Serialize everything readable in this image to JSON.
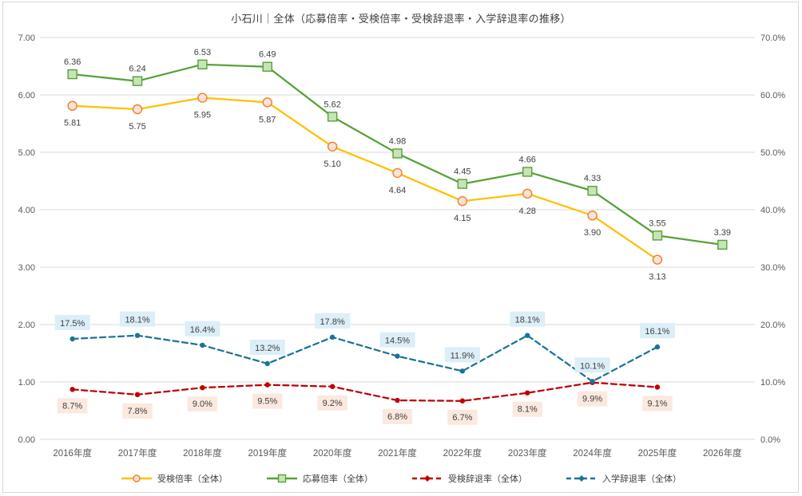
{
  "title": "小石川｜全体（応募倍率・受検倍率・受検辞退率・入学辞退率の推移）",
  "chart_data": {
    "type": "line",
    "title": "小石川｜全体（応募倍率・受検倍率・受検辞退率・入学辞退率の推移）",
    "categories": [
      "2016年度",
      "2017年度",
      "2018年度",
      "2019年度",
      "2020年度",
      "2021年度",
      "2022年度",
      "2023年度",
      "2024年度",
      "2025年度",
      "2026年度"
    ],
    "grid": true,
    "legend_position": "bottom",
    "colors": {
      "grid_line": "#d9d9d9",
      "axis_text": "#595959",
      "label_text": "#404040"
    },
    "left_axis": {
      "min": 0,
      "max": 7,
      "tick_step": 1,
      "tick_labels": [
        "0.00",
        "1.00",
        "2.00",
        "3.00",
        "4.00",
        "5.00",
        "6.00",
        "7.00"
      ]
    },
    "right_axis": {
      "min": 0,
      "max": 70,
      "tick_step": 10,
      "tick_labels": [
        "0.0%",
        "10.0%",
        "20.0%",
        "30.0%",
        "40.0%",
        "50.0%",
        "60.0%",
        "70.0%"
      ]
    },
    "series": [
      {
        "name": "受検倍率（全体）",
        "axis": "left",
        "values": [
          5.81,
          5.75,
          5.95,
          5.87,
          5.1,
          4.64,
          4.15,
          4.28,
          3.9,
          3.13,
          null
        ],
        "labels": [
          "5.81",
          "5.75",
          "5.95",
          "5.87",
          "5.10",
          "4.64",
          "4.15",
          "4.28",
          "3.90",
          "3.13",
          ""
        ],
        "color": "#FFC000",
        "line_style": "solid",
        "marker": "circle-open",
        "marker_fill": "#FBE2D5",
        "marker_stroke": "#ED7D31",
        "label_position": "below",
        "label_bg": null
      },
      {
        "name": "応募倍率（全体）",
        "axis": "left",
        "values": [
          6.36,
          6.24,
          6.53,
          6.49,
          5.62,
          4.98,
          4.45,
          4.66,
          4.33,
          3.55,
          3.39
        ],
        "labels": [
          "6.36",
          "6.24",
          "6.53",
          "6.49",
          "5.62",
          "4.98",
          "4.45",
          "4.66",
          "4.33",
          "3.55",
          "3.39"
        ],
        "color": "#55A236",
        "line_style": "solid",
        "marker": "square-open",
        "marker_fill": "#C9E3B9",
        "marker_stroke": "#55A236",
        "label_position": "above",
        "label_bg": null
      },
      {
        "name": "受検辞退率（全体）",
        "axis": "right",
        "values": [
          8.7,
          7.8,
          9.0,
          9.5,
          9.2,
          6.8,
          6.7,
          8.1,
          9.9,
          9.1,
          null
        ],
        "labels": [
          "8.7%",
          "7.8%",
          "9.0%",
          "9.5%",
          "9.2%",
          "6.8%",
          "6.7%",
          "8.1%",
          "9.9%",
          "9.1%",
          ""
        ],
        "color": "#C00000",
        "line_style": "dashed",
        "marker": "dot",
        "marker_fill": "#C00000",
        "marker_stroke": "#C00000",
        "label_position": "below",
        "label_bg": "#FBE9DF"
      },
      {
        "name": "入学辞退率（全体）",
        "axis": "right",
        "values": [
          17.5,
          18.1,
          16.4,
          13.2,
          17.8,
          14.5,
          11.9,
          18.1,
          10.1,
          16.1,
          null
        ],
        "labels": [
          "17.5%",
          "18.1%",
          "16.4%",
          "13.2%",
          "17.8%",
          "14.5%",
          "11.9%",
          "18.1%",
          "10.1%",
          "16.1%",
          ""
        ],
        "color": "#1B7399",
        "line_style": "dashed",
        "marker": "dot",
        "marker_fill": "#1B7399",
        "marker_stroke": "#1B7399",
        "label_position": "above",
        "label_bg": "#DCEEF7"
      }
    ]
  }
}
